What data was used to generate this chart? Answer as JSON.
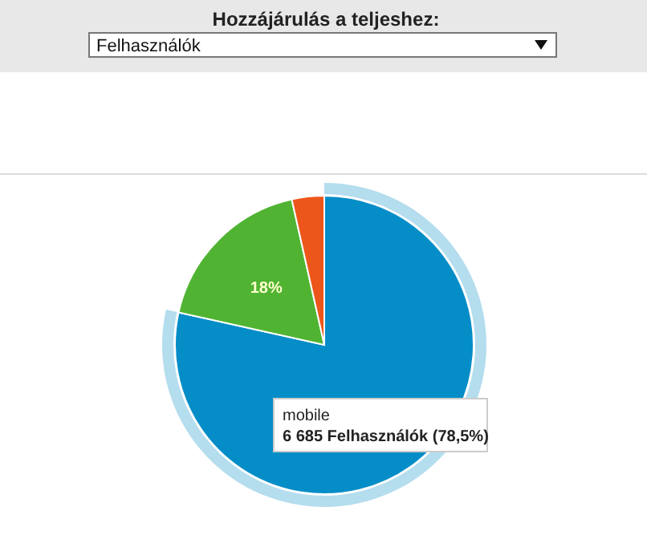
{
  "chart_data": {
    "type": "pie",
    "title": "Hozzájárulás a teljeshez:",
    "subtitle": "Felhasználók",
    "categories": [
      "mobile",
      null,
      null
    ],
    "values": [
      78.5,
      18,
      3.5
    ],
    "colors": [
      "#058dc7",
      "#50b432",
      "#ed561b"
    ],
    "value_labels": [
      null,
      "18%",
      null
    ],
    "annotations": [
      "6 685 Felhasználók (78,5%)"
    ]
  }
}
